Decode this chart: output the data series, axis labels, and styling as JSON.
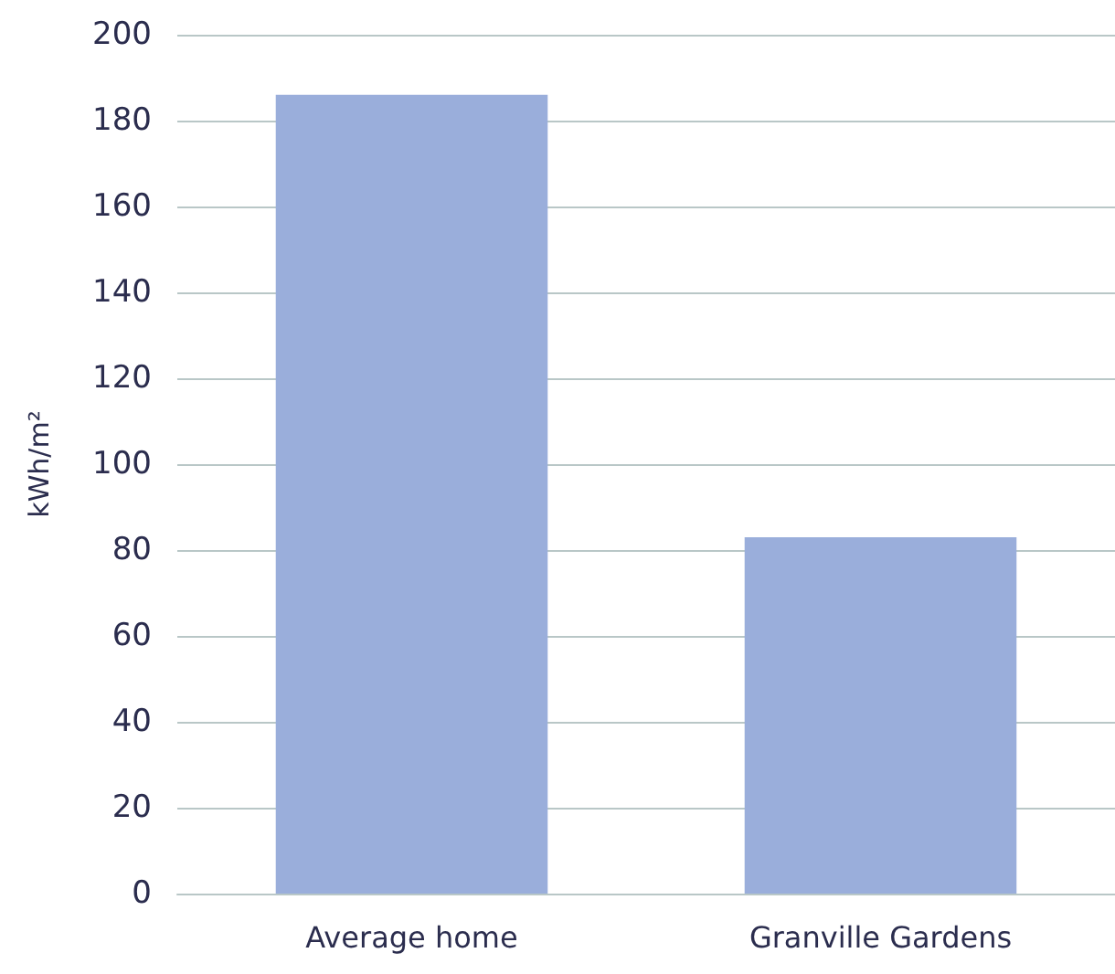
{
  "chart_data": {
    "type": "bar",
    "ylabel": "kWh/m²",
    "categories": [
      "Average home",
      "Granville Gardens"
    ],
    "values": [
      186,
      83
    ],
    "color": "#9aaedb",
    "ylim": [
      0,
      200
    ],
    "yticks": [
      0,
      20,
      40,
      60,
      80,
      100,
      120,
      140,
      160,
      180,
      200
    ],
    "grid": "y"
  }
}
